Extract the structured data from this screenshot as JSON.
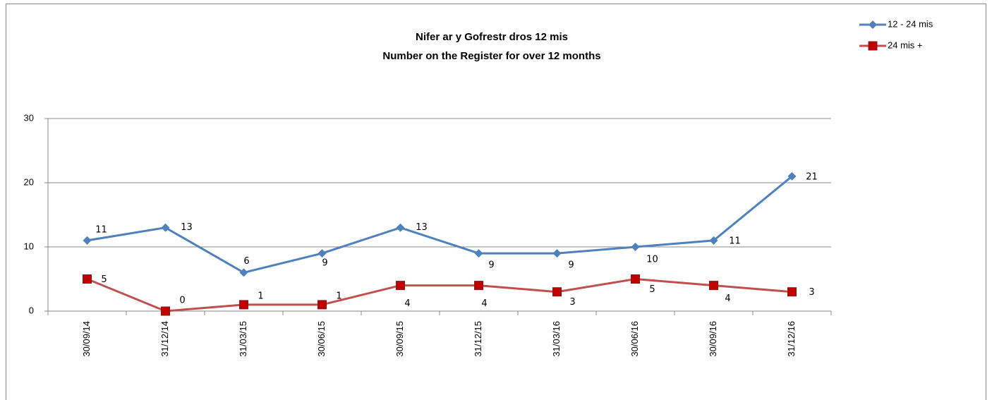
{
  "chart_data": {
    "type": "line",
    "title": "Nifer ar y Gofrestr  dros 12 mis",
    "subtitle": "Number on the Register for over 12 months",
    "categories": [
      "30/09/14",
      "31/12/14",
      "31/03/15",
      "30/06/15",
      "30/09/15",
      "31/12/15",
      "31/03/16",
      "30/06/16",
      "30/09/16",
      "31/12/16"
    ],
    "series": [
      {
        "name": "12 - 24 mis",
        "color": "#4f81bd",
        "label_color": "#1f6fb4",
        "marker": "diamond",
        "values": [
          11,
          13,
          6,
          9,
          13,
          9,
          9,
          10,
          11,
          21
        ]
      },
      {
        "name": "24 mis +",
        "color": "#c0504d",
        "label_color": "#b01010",
        "marker": "square",
        "values": [
          5,
          0,
          1,
          1,
          4,
          4,
          3,
          5,
          4,
          3
        ]
      }
    ],
    "ylim": [
      0,
      30
    ],
    "yticks": [
      0,
      10,
      20,
      30
    ],
    "grid": true,
    "legend": "top-right"
  }
}
